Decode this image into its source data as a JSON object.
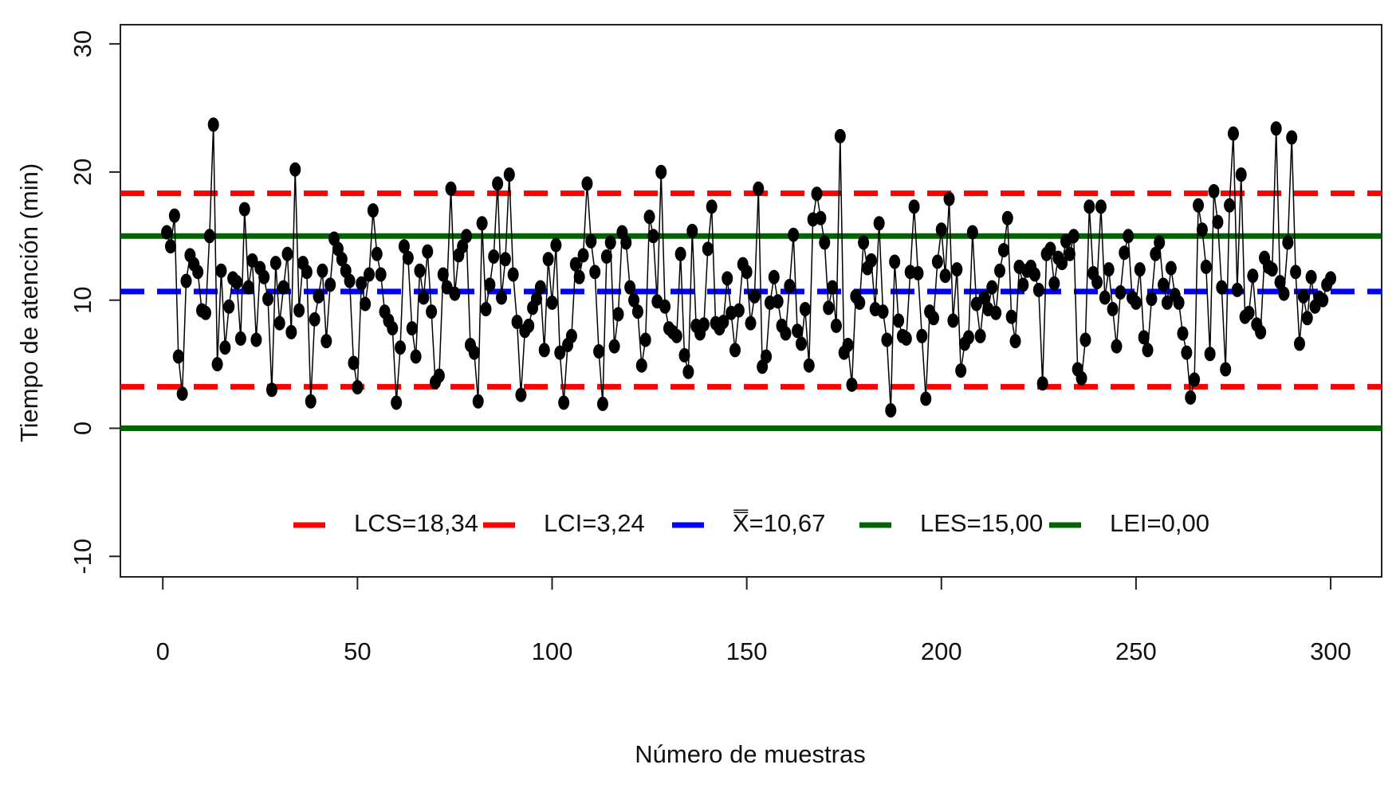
{
  "chart_data": {
    "type": "line",
    "x_label": "Número de muestras",
    "y_label": "Tiempo de atención (min)",
    "xlim": [
      -10.9,
      313.1
    ],
    "ylim": [
      -11.6,
      31.5
    ],
    "xticks": [
      0,
      50,
      100,
      150,
      200,
      250,
      300
    ],
    "yticks": [
      -10,
      0,
      10,
      20,
      30
    ],
    "x": [
      1,
      2,
      3,
      4,
      5,
      6,
      7,
      8,
      9,
      10,
      11,
      12,
      13,
      14,
      15,
      16,
      17,
      18,
      19,
      20,
      21,
      22,
      23,
      24,
      25,
      26,
      27,
      28,
      29,
      30,
      31,
      32,
      33,
      34,
      35,
      36,
      37,
      38,
      39,
      40,
      41,
      42,
      43,
      44,
      45,
      46,
      47,
      48,
      49,
      50,
      51,
      52,
      53,
      54,
      55,
      56,
      57,
      58,
      59,
      60,
      61,
      62,
      63,
      64,
      65,
      66,
      67,
      68,
      69,
      70,
      71,
      72,
      73,
      74,
      75,
      76,
      77,
      78,
      79,
      80,
      81,
      82,
      83,
      84,
      85,
      86,
      87,
      88,
      89,
      90,
      91,
      92,
      93,
      94,
      95,
      96,
      97,
      98,
      99,
      100,
      101,
      102,
      103,
      104,
      105,
      106,
      107,
      108,
      109,
      110,
      111,
      112,
      113,
      114,
      115,
      116,
      117,
      118,
      119,
      120,
      121,
      122,
      123,
      124,
      125,
      126,
      127,
      128,
      129,
      130,
      131,
      132,
      133,
      134,
      135,
      136,
      137,
      138,
      139,
      140,
      141,
      142,
      143,
      144,
      145,
      146,
      147,
      148,
      149,
      150,
      151,
      152,
      153,
      154,
      155,
      156,
      157,
      158,
      159,
      160,
      161,
      162,
      163,
      164,
      165,
      166,
      167,
      168,
      169,
      170,
      171,
      172,
      173,
      174,
      175,
      176,
      177,
      178,
      179,
      180,
      181,
      182,
      183,
      184,
      185,
      186,
      187,
      188,
      189,
      190,
      191,
      192,
      193,
      194,
      195,
      196,
      197,
      198,
      199,
      200,
      201,
      202,
      203,
      204,
      205,
      206,
      207,
      208,
      209,
      210,
      211,
      212,
      213,
      214,
      215,
      216,
      217,
      218,
      219,
      220,
      221,
      222,
      223,
      224,
      225,
      226,
      227,
      228,
      229,
      230,
      231,
      232,
      233,
      234,
      235,
      236,
      237,
      238,
      239,
      240,
      241,
      242,
      243,
      244,
      245,
      246,
      247,
      248,
      249,
      250,
      251,
      252,
      253,
      254,
      255,
      256,
      257,
      258,
      259,
      260,
      261,
      262,
      263,
      264,
      265,
      266,
      267,
      268,
      269,
      270,
      271,
      272,
      273,
      274,
      275,
      276,
      277,
      278,
      279,
      280,
      281,
      282,
      283,
      284,
      285,
      286,
      287,
      288,
      289,
      290,
      291,
      292,
      293,
      294,
      295,
      296,
      297,
      298,
      299,
      300
    ],
    "series": [
      {
        "color": "#000000",
        "values": [
          15.3,
          14.2,
          16.6,
          5.6,
          2.7,
          11.5,
          13.5,
          12.8,
          12.2,
          9.2,
          9.0,
          15.0,
          23.7,
          5.0,
          12.3,
          6.3,
          9.5,
          11.7,
          11.4,
          7.0,
          17.1,
          11.0,
          13.1,
          6.9,
          12.5,
          11.8,
          10.1,
          3.0,
          12.9,
          8.2,
          11.0,
          13.6,
          7.5,
          20.2,
          9.2,
          12.9,
          12.2,
          2.1,
          8.5,
          10.3,
          12.3,
          6.8,
          11.2,
          14.8,
          14.0,
          13.2,
          12.3,
          11.5,
          5.1,
          3.2,
          11.3,
          9.7,
          12.0,
          17.0,
          13.6,
          12.0,
          9.1,
          8.4,
          7.8,
          2.0,
          6.3,
          14.2,
          13.3,
          7.8,
          5.6,
          12.3,
          10.2,
          13.8,
          9.1,
          3.6,
          4.1,
          12.0,
          11.0,
          18.7,
          10.5,
          13.5,
          14.2,
          15.0,
          6.5,
          5.9,
          2.1,
          16.0,
          9.3,
          11.2,
          13.4,
          19.1,
          10.2,
          13.2,
          19.8,
          12.0,
          8.3,
          2.6,
          7.6,
          8.0,
          9.4,
          10.1,
          11.0,
          6.1,
          13.2,
          9.8,
          14.3,
          5.9,
          2.0,
          6.5,
          7.2,
          12.8,
          11.8,
          13.5,
          19.1,
          14.6,
          12.2,
          6.0,
          1.9,
          13.4,
          14.5,
          6.4,
          8.9,
          15.3,
          14.5,
          11.0,
          10.0,
          9.1,
          4.9,
          6.9,
          16.5,
          15.0,
          9.9,
          20.0,
          9.5,
          7.8,
          7.5,
          7.2,
          13.6,
          5.7,
          4.4,
          15.4,
          8.0,
          7.4,
          8.1,
          14.0,
          17.3,
          8.2,
          7.8,
          8.3,
          11.7,
          9.0,
          6.1,
          9.2,
          12.8,
          12.2,
          8.2,
          10.3,
          18.7,
          4.8,
          5.6,
          9.8,
          11.8,
          9.9,
          8.0,
          7.4,
          11.1,
          15.1,
          7.6,
          6.6,
          9.3,
          4.9,
          16.3,
          18.3,
          16.4,
          14.5,
          9.4,
          11.0,
          8.0,
          22.8,
          5.9,
          6.5,
          3.4,
          10.3,
          9.8,
          14.5,
          12.5,
          13.1,
          9.3,
          16.0,
          9.1,
          6.9,
          1.4,
          13.0,
          8.4,
          7.2,
          7.0,
          12.2,
          17.3,
          12.1,
          7.2,
          2.3,
          9.1,
          8.6,
          13.0,
          15.5,
          11.9,
          17.9,
          8.4,
          12.4,
          4.5,
          6.6,
          7.1,
          15.3,
          9.7,
          7.2,
          10.2,
          9.3,
          11.0,
          9.0,
          12.3,
          13.9,
          16.4,
          8.7,
          6.8,
          12.6,
          11.2,
          12.3,
          12.6,
          12.0,
          10.8,
          3.5,
          13.6,
          14.0,
          11.3,
          13.3,
          12.9,
          14.6,
          13.6,
          15.0,
          4.6,
          3.9,
          6.9,
          17.3,
          12.1,
          11.4,
          17.3,
          10.2,
          12.4,
          9.3,
          6.4,
          10.6,
          13.7,
          15.0,
          10.2,
          9.8,
          12.4,
          7.1,
          6.1,
          10.1,
          13.6,
          14.5,
          11.2,
          9.8,
          12.5,
          10.4,
          9.8,
          7.4,
          5.9,
          2.4,
          3.8,
          17.4,
          15.5,
          12.6,
          5.8,
          18.5,
          16.1,
          11.0,
          4.6,
          17.4,
          23.0,
          10.8,
          19.8,
          8.7,
          9.0,
          11.9,
          8.1,
          7.5,
          13.3,
          12.6,
          12.4,
          23.4,
          11.4,
          10.5,
          14.5,
          22.7,
          12.2,
          6.6,
          10.3,
          8.6,
          11.8,
          9.5,
          10.2,
          10.0,
          11.2,
          11.7
        ]
      }
    ],
    "limits": [
      {
        "name": "LCS=18,34",
        "value": 18.34,
        "color": "#ff0000",
        "dashed": true
      },
      {
        "name": "LCI=3,24",
        "value": 3.24,
        "color": "#ff0000",
        "dashed": true
      },
      {
        "name": "X̿=10,67",
        "value": 10.67,
        "color": "#0000ff",
        "dashed": true
      },
      {
        "name": "LES=15,00",
        "value": 15.0,
        "color": "#006400",
        "dashed": false
      },
      {
        "name": "LEI=0,00",
        "value": 0.0,
        "color": "#006400",
        "dashed": false
      }
    ]
  }
}
